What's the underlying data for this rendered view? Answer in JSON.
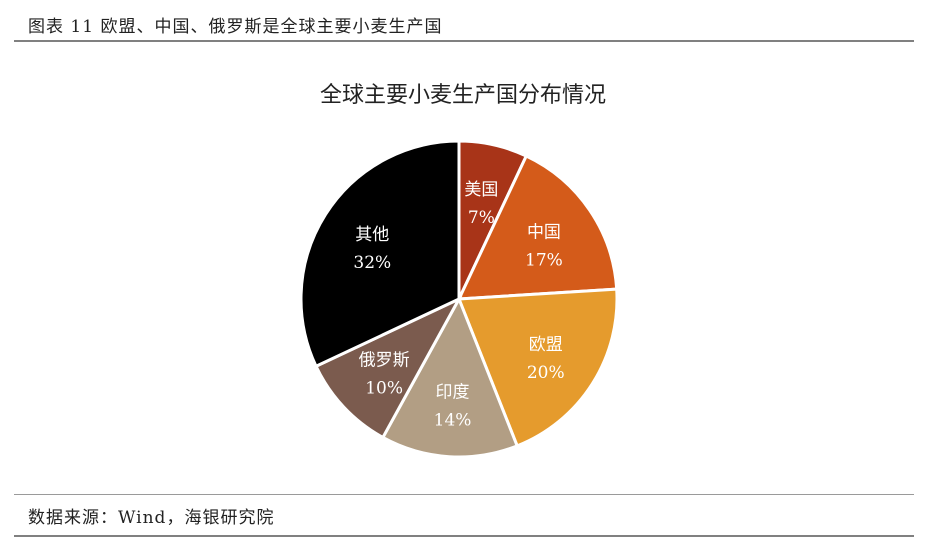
{
  "figure": {
    "title": "图表 11 欧盟、中国、俄罗斯是全球主要小麦生产国"
  },
  "source": "数据来源：Wind，海银研究院",
  "chart_data": {
    "type": "pie",
    "title": "全球主要小麦生产国分布情况",
    "categories": [
      "美国",
      "中国",
      "欧盟",
      "印度",
      "俄罗斯",
      "其他"
    ],
    "values": [
      7,
      17,
      20,
      14,
      10,
      32
    ],
    "labels": [
      "7%",
      "17%",
      "20%",
      "14%",
      "10%",
      "32%"
    ],
    "colors": [
      "#a83418",
      "#d45b1a",
      "#e59b2d",
      "#b29e84",
      "#7b5b4e",
      "#000000"
    ],
    "label_color": "#ffffff",
    "legend": "none"
  }
}
